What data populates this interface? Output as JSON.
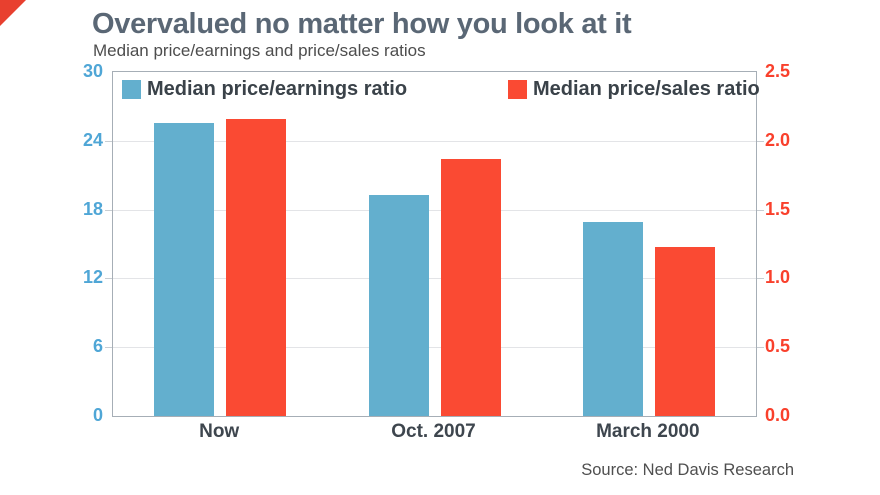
{
  "brand": {
    "corner_color": "#e8402f"
  },
  "header": {
    "title": "Overvalued no matter how you look at it",
    "subtitle": "Median price/earnings and price/sales ratios"
  },
  "chart_data": {
    "type": "bar",
    "categories": [
      "Now",
      "Oct. 2007",
      "March 2000"
    ],
    "series": [
      {
        "name": "Median price/earnings ratio",
        "axis": "left",
        "color": "#63afce",
        "values": [
          25.6,
          19.3,
          16.9
        ]
      },
      {
        "name": "Median price/sales ratio",
        "axis": "right",
        "color": "#fa4a33",
        "values": [
          2.16,
          1.87,
          1.23
        ]
      }
    ],
    "left_axis": {
      "ticks": [
        "30",
        "24",
        "18",
        "12",
        "6",
        "0"
      ],
      "min": 0,
      "max": 30,
      "color": "#4fa6d6"
    },
    "right_axis": {
      "ticks": [
        "2.5",
        "2.0",
        "1.5",
        "1.0",
        "0.5",
        "0.0"
      ],
      "min": 0,
      "max": 2.5,
      "color": "#f9402c"
    },
    "grid": true,
    "legend_position": "top-inside"
  },
  "source": {
    "label": "Source: Ned Davis Research"
  }
}
